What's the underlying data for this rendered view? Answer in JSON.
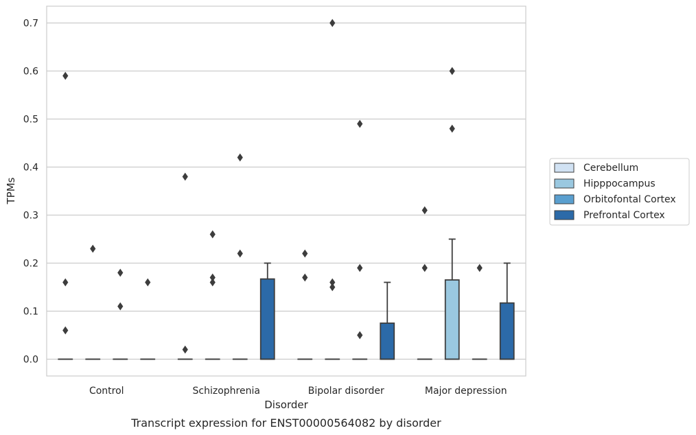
{
  "chart_data": {
    "type": "box",
    "title": "",
    "caption": "Transcript expression for ENST00000564082 by disorder",
    "xlabel": "Disorder",
    "ylabel": "TPMs",
    "ylim": [
      -0.035,
      0.735
    ],
    "yticks": [
      "0.0",
      "0.1",
      "0.2",
      "0.3",
      "0.4",
      "0.5",
      "0.6",
      "0.7"
    ],
    "grid": "horizontal",
    "legend_placement": "right",
    "categories": [
      "Control",
      "Schizophrenia",
      "Bipolar disorder",
      "Major depression"
    ],
    "series": [
      {
        "name": "Cerebellum",
        "color": "#d1e2f3",
        "boxes": [
          {
            "q1": 0,
            "median": 0,
            "q3": 0,
            "whisker_low": 0,
            "whisker_high": 0,
            "outliers": [
              0.59,
              0.16,
              0.06
            ]
          },
          {
            "q1": 0,
            "median": 0,
            "q3": 0,
            "whisker_low": 0,
            "whisker_high": 0,
            "outliers": [
              0.38,
              0.02
            ]
          },
          {
            "q1": 0,
            "median": 0,
            "q3": 0,
            "whisker_low": 0,
            "whisker_high": 0,
            "outliers": [
              0.22,
              0.17
            ]
          },
          {
            "q1": 0,
            "median": 0,
            "q3": 0,
            "whisker_low": 0,
            "whisker_high": 0,
            "outliers": [
              0.31,
              0.19
            ]
          }
        ]
      },
      {
        "name": "Hipppocampus",
        "color": "#9ac8e0",
        "boxes": [
          {
            "q1": 0,
            "median": 0,
            "q3": 0,
            "whisker_low": 0,
            "whisker_high": 0,
            "outliers": [
              0.23
            ]
          },
          {
            "q1": 0,
            "median": 0,
            "q3": 0,
            "whisker_low": 0,
            "whisker_high": 0,
            "outliers": [
              0.26,
              0.17,
              0.16
            ]
          },
          {
            "q1": 0,
            "median": 0,
            "q3": 0,
            "whisker_low": 0,
            "whisker_high": 0,
            "outliers": [
              0.7,
              0.16,
              0.15
            ]
          },
          {
            "q1": 0,
            "median": 0,
            "q3": 0.165,
            "whisker_low": 0,
            "whisker_high": 0.25,
            "outliers": [
              0.6,
              0.48
            ]
          }
        ]
      },
      {
        "name": "Orbitofontal Cortex",
        "color": "#5a9fcf",
        "boxes": [
          {
            "q1": 0,
            "median": 0,
            "q3": 0,
            "whisker_low": 0,
            "whisker_high": 0,
            "outliers": [
              0.18,
              0.11
            ]
          },
          {
            "q1": 0,
            "median": 0,
            "q3": 0,
            "whisker_low": 0,
            "whisker_high": 0,
            "outliers": [
              0.42,
              0.22
            ]
          },
          {
            "q1": 0,
            "median": 0,
            "q3": 0,
            "whisker_low": 0,
            "whisker_high": 0,
            "outliers": [
              0.49,
              0.19,
              0.05
            ]
          },
          {
            "q1": 0,
            "median": 0,
            "q3": 0,
            "whisker_low": 0,
            "whisker_high": 0,
            "outliers": [
              0.19
            ]
          }
        ]
      },
      {
        "name": "Prefrontal Cortex",
        "color": "#2c6aa8",
        "boxes": [
          {
            "q1": 0,
            "median": 0,
            "q3": 0,
            "whisker_low": 0,
            "whisker_high": 0,
            "outliers": [
              0.16
            ]
          },
          {
            "q1": 0,
            "median": 0,
            "q3": 0.167,
            "whisker_low": 0,
            "whisker_high": 0.2,
            "outliers": []
          },
          {
            "q1": 0,
            "median": 0,
            "q3": 0.075,
            "whisker_low": 0,
            "whisker_high": 0.16,
            "outliers": []
          },
          {
            "q1": 0,
            "median": 0,
            "q3": 0.117,
            "whisker_low": 0,
            "whisker_high": 0.2,
            "outliers": []
          }
        ]
      }
    ]
  }
}
